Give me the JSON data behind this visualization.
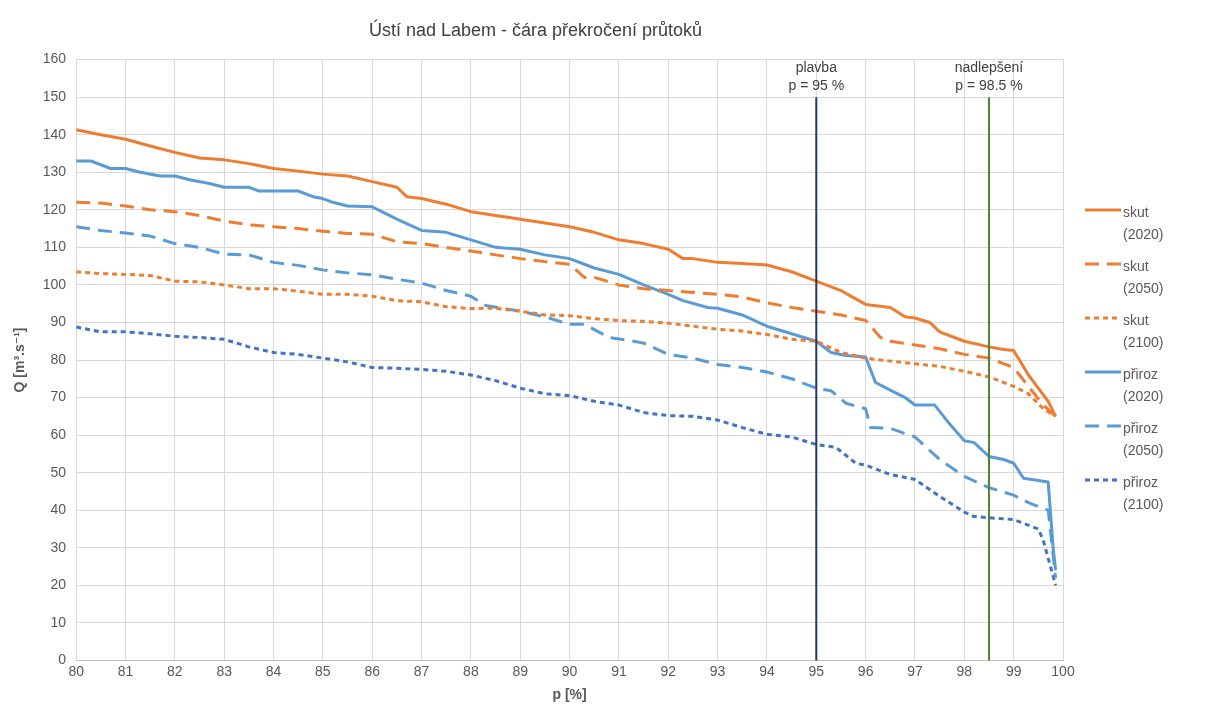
{
  "chart_data": {
    "type": "line",
    "title": "Ústí nad Labem - čára překročení průtoků",
    "xlabel": "p [%]",
    "ylabel": "Q [m³.s⁻¹]",
    "xlim": [
      80,
      100
    ],
    "xticks": [
      80,
      81,
      82,
      83,
      84,
      85,
      86,
      87,
      88,
      89,
      90,
      91,
      92,
      93,
      94,
      95,
      96,
      97,
      98,
      99,
      100
    ],
    "ylim": [
      0,
      160
    ],
    "yticks": [
      0,
      10,
      20,
      30,
      40,
      50,
      60,
      70,
      80,
      90,
      100,
      110,
      120,
      130,
      140,
      150,
      160
    ],
    "grid": true,
    "legend": "right",
    "marker": "none",
    "series": [
      {
        "name": "skut (2020)",
        "color": "#ed7d31",
        "line_style": "solid",
        "x": [
          80,
          80.5,
          81,
          81.5,
          82,
          82.5,
          83,
          83.5,
          84,
          84.5,
          85,
          85.5,
          86,
          86.5,
          86.7,
          87,
          87.5,
          88,
          88.5,
          89,
          89.5,
          90,
          90.5,
          91,
          91.5,
          92,
          92.3,
          92.5,
          93,
          93.5,
          94,
          94.5,
          95,
          95.5,
          95.7,
          96,
          96.5,
          96.8,
          97,
          97.3,
          97.5,
          98,
          98.5,
          98.8,
          99,
          99.3,
          99.7,
          99.85
        ],
        "values": [
          141.3,
          140,
          138.8,
          137,
          135.3,
          133.8,
          133.3,
          132.3,
          131,
          130.3,
          129.5,
          129,
          127.5,
          126,
          123.5,
          123,
          121.5,
          119.5,
          118.5,
          117.5,
          116.5,
          115.5,
          114,
          112,
          111,
          109.5,
          107,
          107,
          106,
          105.7,
          105.3,
          103.5,
          101,
          98.5,
          97,
          94.8,
          94,
          91.5,
          91.2,
          90,
          87.5,
          85,
          83.5,
          82.8,
          82.5,
          76,
          69,
          65
        ]
      },
      {
        "name": "skut (2050)",
        "color": "#ed7d31",
        "line_style": "dashed",
        "x": [
          80,
          80.5,
          81,
          81.5,
          82,
          82.5,
          83,
          83.5,
          84,
          84.5,
          85,
          85.5,
          86,
          86.5,
          87,
          87.5,
          88,
          88.5,
          89,
          89.5,
          90,
          90.3,
          90.5,
          91,
          91.5,
          92,
          92.5,
          93,
          93.5,
          94,
          94.5,
          95,
          95.5,
          96,
          96.3,
          96.5,
          97,
          97.5,
          98,
          98.5,
          99,
          99.3,
          99.6,
          99.85
        ],
        "values": [
          122,
          121.8,
          121,
          120,
          119.5,
          118.5,
          117,
          116,
          115.5,
          115,
          114.3,
          113.7,
          113.5,
          111.5,
          111,
          110,
          109,
          108,
          107,
          106.2,
          105.5,
          102,
          102,
          100,
          99,
          98.5,
          98,
          97.5,
          96.8,
          95.2,
          94,
          93,
          92,
          90.5,
          86,
          85,
          84,
          83,
          81.5,
          80.5,
          78,
          73,
          68,
          65
        ]
      },
      {
        "name": "skut (2100)",
        "color": "#ed7d31",
        "line_style": "dotted",
        "x": [
          80,
          80.5,
          81,
          81.5,
          82,
          82.5,
          83,
          83.5,
          84,
          84.5,
          85,
          85.5,
          86,
          86.5,
          87,
          87.5,
          88,
          88.5,
          89,
          89.5,
          90,
          90.5,
          91,
          91.5,
          92,
          92.5,
          93,
          93.5,
          94,
          94.5,
          95,
          95.5,
          96,
          96.5,
          97,
          97.5,
          98,
          98.5,
          99,
          99.3,
          99.6,
          99.85
        ],
        "values": [
          103.5,
          103,
          102.8,
          102.5,
          101,
          100.8,
          100,
          99,
          99,
          98.3,
          97.5,
          97.5,
          97,
          95.8,
          95.5,
          94.2,
          93.7,
          93.8,
          93,
          92,
          91.8,
          91,
          90.5,
          90.3,
          89.8,
          89,
          88.2,
          87.7,
          86.8,
          85.5,
          85,
          82,
          80.5,
          79.7,
          79,
          78.3,
          77,
          75.5,
          73,
          71,
          67,
          65
        ]
      },
      {
        "name": "přiroz (2020)",
        "color": "#5b9bd5",
        "line_style": "solid",
        "x": [
          80,
          80.3,
          80.7,
          81,
          81.3,
          81.7,
          82,
          82.3,
          82.7,
          83,
          83.5,
          83.7,
          84,
          84.5,
          84.8,
          85,
          85.2,
          85.5,
          86,
          86.5,
          87,
          87.5,
          88,
          88.5,
          89,
          89.5,
          90,
          90.5,
          91,
          91.5,
          92,
          92.3,
          92.8,
          93,
          93.5,
          94,
          94.5,
          95,
          95.3,
          95.6,
          96,
          96.2,
          96.5,
          96.8,
          97,
          97.4,
          97.7,
          98,
          98.2,
          98.5,
          98.8,
          99,
          99.2,
          99.7,
          99.8,
          99.85
        ],
        "values": [
          133,
          133,
          131,
          131,
          130,
          129,
          129,
          128,
          127,
          126,
          126,
          125,
          125,
          125,
          123.5,
          123,
          122,
          121,
          120.8,
          117.5,
          114.5,
          114,
          112,
          110,
          109.5,
          108,
          107,
          104.5,
          102.8,
          100,
          97.5,
          95.8,
          94,
          93.8,
          92,
          89,
          87,
          85,
          82,
          81.2,
          80.8,
          74,
          72,
          70,
          68,
          68,
          63,
          58.5,
          58,
          54.3,
          53.5,
          52.5,
          48.5,
          47.5,
          30,
          24
        ]
      },
      {
        "name": "přiroz (2050)",
        "color": "#5b9bd5",
        "line_style": "dashed",
        "x": [
          80,
          80.5,
          81,
          81.5,
          82,
          82.5,
          83,
          83.5,
          84,
          84.5,
          85,
          85.5,
          86,
          86.5,
          87,
          87.5,
          88,
          88.3,
          89,
          89.5,
          90,
          90.3,
          90.8,
          91.3,
          91.5,
          92,
          92.5,
          93,
          93.5,
          94,
          94.5,
          95,
          95.3,
          95.6,
          96,
          96.1,
          96.5,
          97,
          97.5,
          98,
          98.5,
          99,
          99.3,
          99.7,
          99.85
        ],
        "values": [
          115.5,
          114.5,
          113.8,
          113,
          111,
          110,
          108.2,
          108,
          106,
          105.2,
          104,
          103.2,
          102.7,
          101.5,
          100.5,
          98.5,
          97,
          94.5,
          93,
          91.5,
          89.5,
          89.5,
          86,
          85,
          84.5,
          81.5,
          80.5,
          78.8,
          78,
          76.8,
          75,
          72.5,
          71.8,
          68.5,
          67,
          62,
          61.8,
          59.5,
          53.5,
          49,
          46,
          44,
          42,
          40,
          22
        ]
      },
      {
        "name": "přiroz (2100)",
        "color": "#4472c4",
        "line_style": "dotted",
        "x": [
          80,
          80.5,
          81,
          81.5,
          82,
          82.5,
          83,
          83.5,
          84,
          84.5,
          85,
          85.5,
          86,
          86.5,
          87,
          87.5,
          88,
          88.5,
          89,
          89.5,
          90,
          90.5,
          91,
          91.5,
          92,
          92.5,
          93,
          93.5,
          94,
          94.5,
          95,
          95.4,
          95.8,
          96,
          96.5,
          97,
          97.5,
          98,
          98.2,
          99,
          99.5,
          99.6,
          99.85
        ],
        "values": [
          88.8,
          87.5,
          87.5,
          87,
          86.3,
          86,
          85.5,
          83.5,
          82,
          81.5,
          80.5,
          79.5,
          78,
          77.8,
          77.5,
          77,
          76,
          74.5,
          72.5,
          71,
          70.5,
          69,
          68,
          66,
          65.2,
          65,
          64,
          62,
          60.2,
          59.5,
          57.5,
          56.7,
          52.5,
          52,
          49.5,
          48.2,
          43.7,
          39.5,
          38.3,
          37.5,
          35,
          32,
          20
        ]
      }
    ],
    "ref_lines": [
      {
        "axis": "x",
        "value": 95,
        "label": "plavba\np = 95 %",
        "color": "#203864"
      },
      {
        "axis": "x",
        "value": 98.5,
        "label": "nadlepšení\np = 98.5 %",
        "color": "#548235"
      }
    ]
  }
}
